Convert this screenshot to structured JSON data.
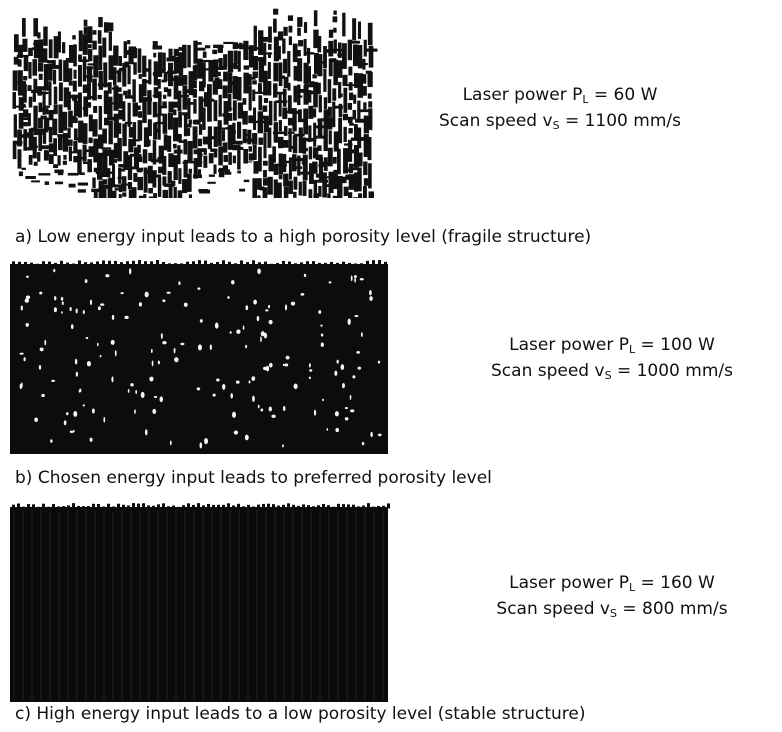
{
  "panels": [
    {
      "params": [
        {
          "label": "Laser power P",
          "sub": "L",
          "rest": " = 60 W"
        },
        {
          "label": "Scan speed v",
          "sub": "S",
          "rest": " = 1100 mm/s"
        }
      ],
      "caption": "a) Low energy input leads to a high porosity level (fragile structure)"
    },
    {
      "params": [
        {
          "label": "Laser power P",
          "sub": "L",
          "rest": " = 100 W"
        },
        {
          "label": "Scan speed v",
          "sub": "S",
          "rest": " = 1000 mm/s"
        }
      ],
      "caption": "b) Chosen energy input leads to preferred porosity level"
    },
    {
      "params": [
        {
          "label": "Laser power P",
          "sub": "L",
          "rest": " = 160 W"
        },
        {
          "label": "Scan speed v",
          "sub": "S",
          "rest": " = 800 mm/s"
        }
      ],
      "caption": "c) High energy input leads to a low porosity level (stable structure)"
    }
  ]
}
